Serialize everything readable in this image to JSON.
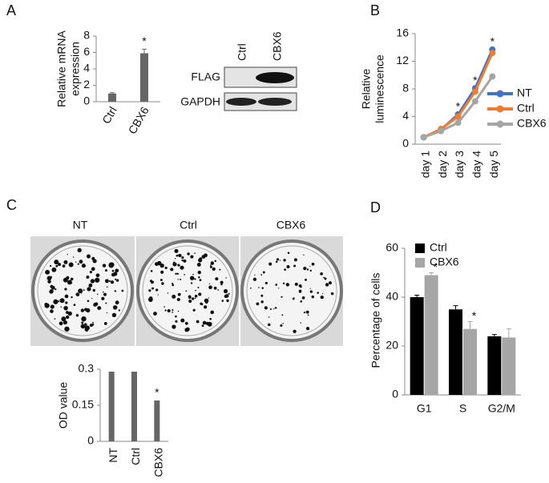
{
  "panel_labels": [
    "A",
    "B",
    "C",
    "D"
  ],
  "blot": {
    "lanes": [
      "Ctrl",
      "CBX6"
    ],
    "rows": [
      "FLAG",
      "GAPDH"
    ]
  },
  "plates": [
    "NT",
    "Ctrl",
    "CBX6"
  ],
  "chart_data": [
    {
      "type": "bar",
      "ylabel": [
        "Relative mRNA",
        "expression"
      ],
      "categories": [
        "Ctrl",
        "CBX6"
      ],
      "values": [
        1.0,
        5.9
      ],
      "errors": [
        0.1,
        0.5
      ],
      "significance": [
        null,
        "*"
      ],
      "color": "#666666",
      "ylim": [
        0,
        8
      ],
      "yticks": [
        0,
        2,
        4,
        6,
        8
      ]
    },
    {
      "type": "line",
      "ylabel": [
        "Relative",
        "luminescence"
      ],
      "categories": [
        "day 1",
        "day 2",
        "day 3",
        "day 4",
        "day 5"
      ],
      "series": [
        {
          "name": "NT",
          "color": "#4472c4",
          "values": [
            1.0,
            2.1,
            4.3,
            8.1,
            13.7
          ]
        },
        {
          "name": "Ctrl",
          "color": "#ed7d31",
          "values": [
            1.0,
            2.2,
            4.0,
            7.6,
            13.2
          ]
        },
        {
          "name": "CBX6",
          "color": "#a5a5a5",
          "values": [
            1.0,
            1.9,
            3.1,
            6.2,
            9.8
          ]
        }
      ],
      "significance": [
        null,
        null,
        "*",
        "*",
        "*"
      ],
      "ylim": [
        0,
        16
      ],
      "yticks": [
        0,
        4,
        8,
        12,
        16
      ],
      "legend": "right"
    },
    {
      "type": "bar",
      "ylabel": [
        "OD value"
      ],
      "categories": [
        "NT",
        "Ctrl",
        "CBX6"
      ],
      "values": [
        0.29,
        0.29,
        0.17
      ],
      "significance": [
        null,
        null,
        "*"
      ],
      "color": "#666666",
      "ylim": [
        0,
        0.3
      ],
      "yticks": [
        0,
        0.15,
        0.3
      ]
    },
    {
      "type": "grouped-bar",
      "ylabel": [
        "Percentage of cells"
      ],
      "categories": [
        "G1",
        "S",
        "G2/M"
      ],
      "series": [
        {
          "name": "Ctrl",
          "color": "#000000",
          "values": [
            40,
            35,
            24
          ],
          "errors": [
            0.8,
            1.5,
            0.7
          ],
          "significance": [
            null,
            null,
            null
          ]
        },
        {
          "name": "CBX6",
          "color": "#a6a6a6",
          "values": [
            49,
            27,
            23.5
          ],
          "errors": [
            1,
            3,
            3.5
          ],
          "significance": [
            "*",
            "*",
            null
          ]
        }
      ],
      "ylim": [
        0,
        60
      ],
      "yticks": [
        0,
        20,
        40,
        60
      ],
      "legend": "upper left"
    }
  ]
}
